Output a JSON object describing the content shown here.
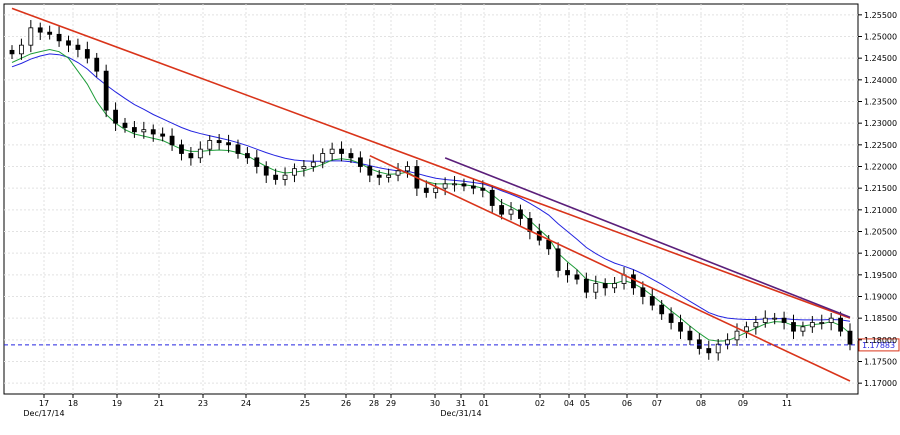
{
  "chart_data": {
    "type": "candlestick",
    "instrument_price_tag": "1.17883",
    "grid": true,
    "colors": {
      "candle": "#000000",
      "ma_fast": "#1f9d3a",
      "ma_slow": "#2424e0",
      "trendline_upper": "#d9341a",
      "trendline_lower": "#d9341a",
      "trendline_purple": "#5b1f7a",
      "price_line": "#2424e0",
      "grid": "#e2e2e2"
    },
    "y_axis": {
      "min": 1.1675,
      "max": 1.2575,
      "ticks": [
        "1.25500",
        "1.25000",
        "1.24500",
        "1.24000",
        "1.23500",
        "1.23000",
        "1.22500",
        "1.22000",
        "1.21500",
        "1.21000",
        "1.20500",
        "1.20000",
        "1.19500",
        "1.19000",
        "1.18500",
        "1.18000",
        "1.17500",
        "1.17000"
      ]
    },
    "x_axis": {
      "tick_labels": [
        "17",
        "18",
        "19",
        "21",
        "23",
        "24",
        "25",
        "26",
        "28",
        "29",
        "30",
        "31",
        "01",
        "02",
        "04",
        "05",
        "06",
        "07",
        "08",
        "09",
        "11"
      ],
      "date_labels": [
        "Dec/17/14",
        "Dec/31/14"
      ]
    },
    "ohlc_close": [
      1.246,
      1.248,
      1.252,
      1.251,
      1.2505,
      1.249,
      1.248,
      1.247,
      1.245,
      1.242,
      1.233,
      1.23,
      1.229,
      1.228,
      1.2285,
      1.2275,
      1.227,
      1.225,
      1.223,
      1.222,
      1.224,
      1.226,
      1.2255,
      1.225,
      1.223,
      1.222,
      1.22,
      1.218,
      1.217,
      1.218,
      1.2195,
      1.22,
      1.221,
      1.223,
      1.224,
      1.223,
      1.222,
      1.22,
      1.218,
      1.2175,
      1.218,
      1.219,
      1.22,
      1.215,
      1.214,
      1.215,
      1.216,
      1.216,
      1.2155,
      1.215,
      1.2145,
      1.211,
      1.209,
      1.21,
      1.208,
      1.205,
      1.203,
      1.201,
      1.196,
      1.195,
      1.194,
      1.191,
      1.193,
      1.192,
      1.193,
      1.195,
      1.192,
      1.19,
      1.188,
      1.186,
      1.184,
      1.182,
      1.18,
      1.178,
      1.177,
      1.179,
      1.18,
      1.182,
      1.183,
      1.184,
      1.185,
      1.185,
      1.184,
      1.182,
      1.183,
      1.184,
      1.184,
      1.185,
      1.182,
      1.179
    ],
    "ma_fast_values": [
      1.244,
      1.245,
      1.246,
      1.2465,
      1.247,
      1.2465,
      1.245,
      1.242,
      1.239,
      1.235,
      1.232,
      1.23,
      1.2285,
      1.2275,
      1.227,
      1.2265,
      1.226,
      1.225,
      1.224,
      1.2235,
      1.2235,
      1.2237,
      1.2238,
      1.2237,
      1.2232,
      1.2225,
      1.2212,
      1.22,
      1.219,
      1.2185,
      1.2187,
      1.219,
      1.2197,
      1.2205,
      1.2215,
      1.2218,
      1.2215,
      1.2207,
      1.2195,
      1.2187,
      1.2182,
      1.2183,
      1.2187,
      1.2175,
      1.2165,
      1.216,
      1.216,
      1.216,
      1.2158,
      1.2155,
      1.215,
      1.2135,
      1.2117,
      1.2107,
      1.2095,
      1.2075,
      1.2055,
      1.2035,
      1.2,
      1.198,
      1.1962,
      1.194,
      1.1935,
      1.193,
      1.193,
      1.1937,
      1.193,
      1.1918,
      1.1902,
      1.1885,
      1.1867,
      1.185,
      1.1832,
      1.1815,
      1.18,
      1.1797,
      1.1798,
      1.1807,
      1.1817,
      1.1827,
      1.1837,
      1.1842,
      1.1841,
      1.1833,
      1.1832,
      1.1835,
      1.1837,
      1.1842,
      1.1833,
      1.1815
    ],
    "ma_slow_values": [
      1.243,
      1.2438,
      1.2448,
      1.2455,
      1.246,
      1.2458,
      1.2452,
      1.244,
      1.2425,
      1.2405,
      1.2388,
      1.2372,
      1.2357,
      1.2343,
      1.2332,
      1.232,
      1.231,
      1.23,
      1.229,
      1.2282,
      1.2276,
      1.2271,
      1.2266,
      1.2261,
      1.2255,
      1.2248,
      1.224,
      1.2232,
      1.2225,
      1.2219,
      1.2215,
      1.2213,
      1.2212,
      1.2212,
      1.2213,
      1.2213,
      1.2211,
      1.2207,
      1.2202,
      1.2197,
      1.2193,
      1.219,
      1.2189,
      1.2184,
      1.2178,
      1.2173,
      1.217,
      1.2168,
      1.2166,
      1.2163,
      1.216,
      1.2153,
      1.2144,
      1.2136,
      1.2127,
      1.2115,
      1.2102,
      1.2088,
      1.2068,
      1.205,
      1.2032,
      1.2013,
      1.1999,
      1.1987,
      1.1977,
      1.197,
      1.1962,
      1.1952,
      1.194,
      1.1928,
      1.1915,
      1.1902,
      1.1889,
      1.1876,
      1.1863,
      1.1855,
      1.185,
      1.1848,
      1.1847,
      1.1847,
      1.1848,
      1.1849,
      1.1849,
      1.1847,
      1.1846,
      1.1846,
      1.1846,
      1.1847,
      1.1846,
      1.1843
    ],
    "trendlines": {
      "upper_red": {
        "from": [
          0,
          1.2565
        ],
        "to": [
          89,
          1.185
        ]
      },
      "lower_red": {
        "from": [
          38,
          1.2225
        ],
        "to": [
          89,
          1.1705
        ]
      },
      "purple": {
        "from": [
          46,
          1.222
        ],
        "to": [
          89,
          1.1852
        ]
      }
    },
    "price_line_value": 1.17883
  }
}
